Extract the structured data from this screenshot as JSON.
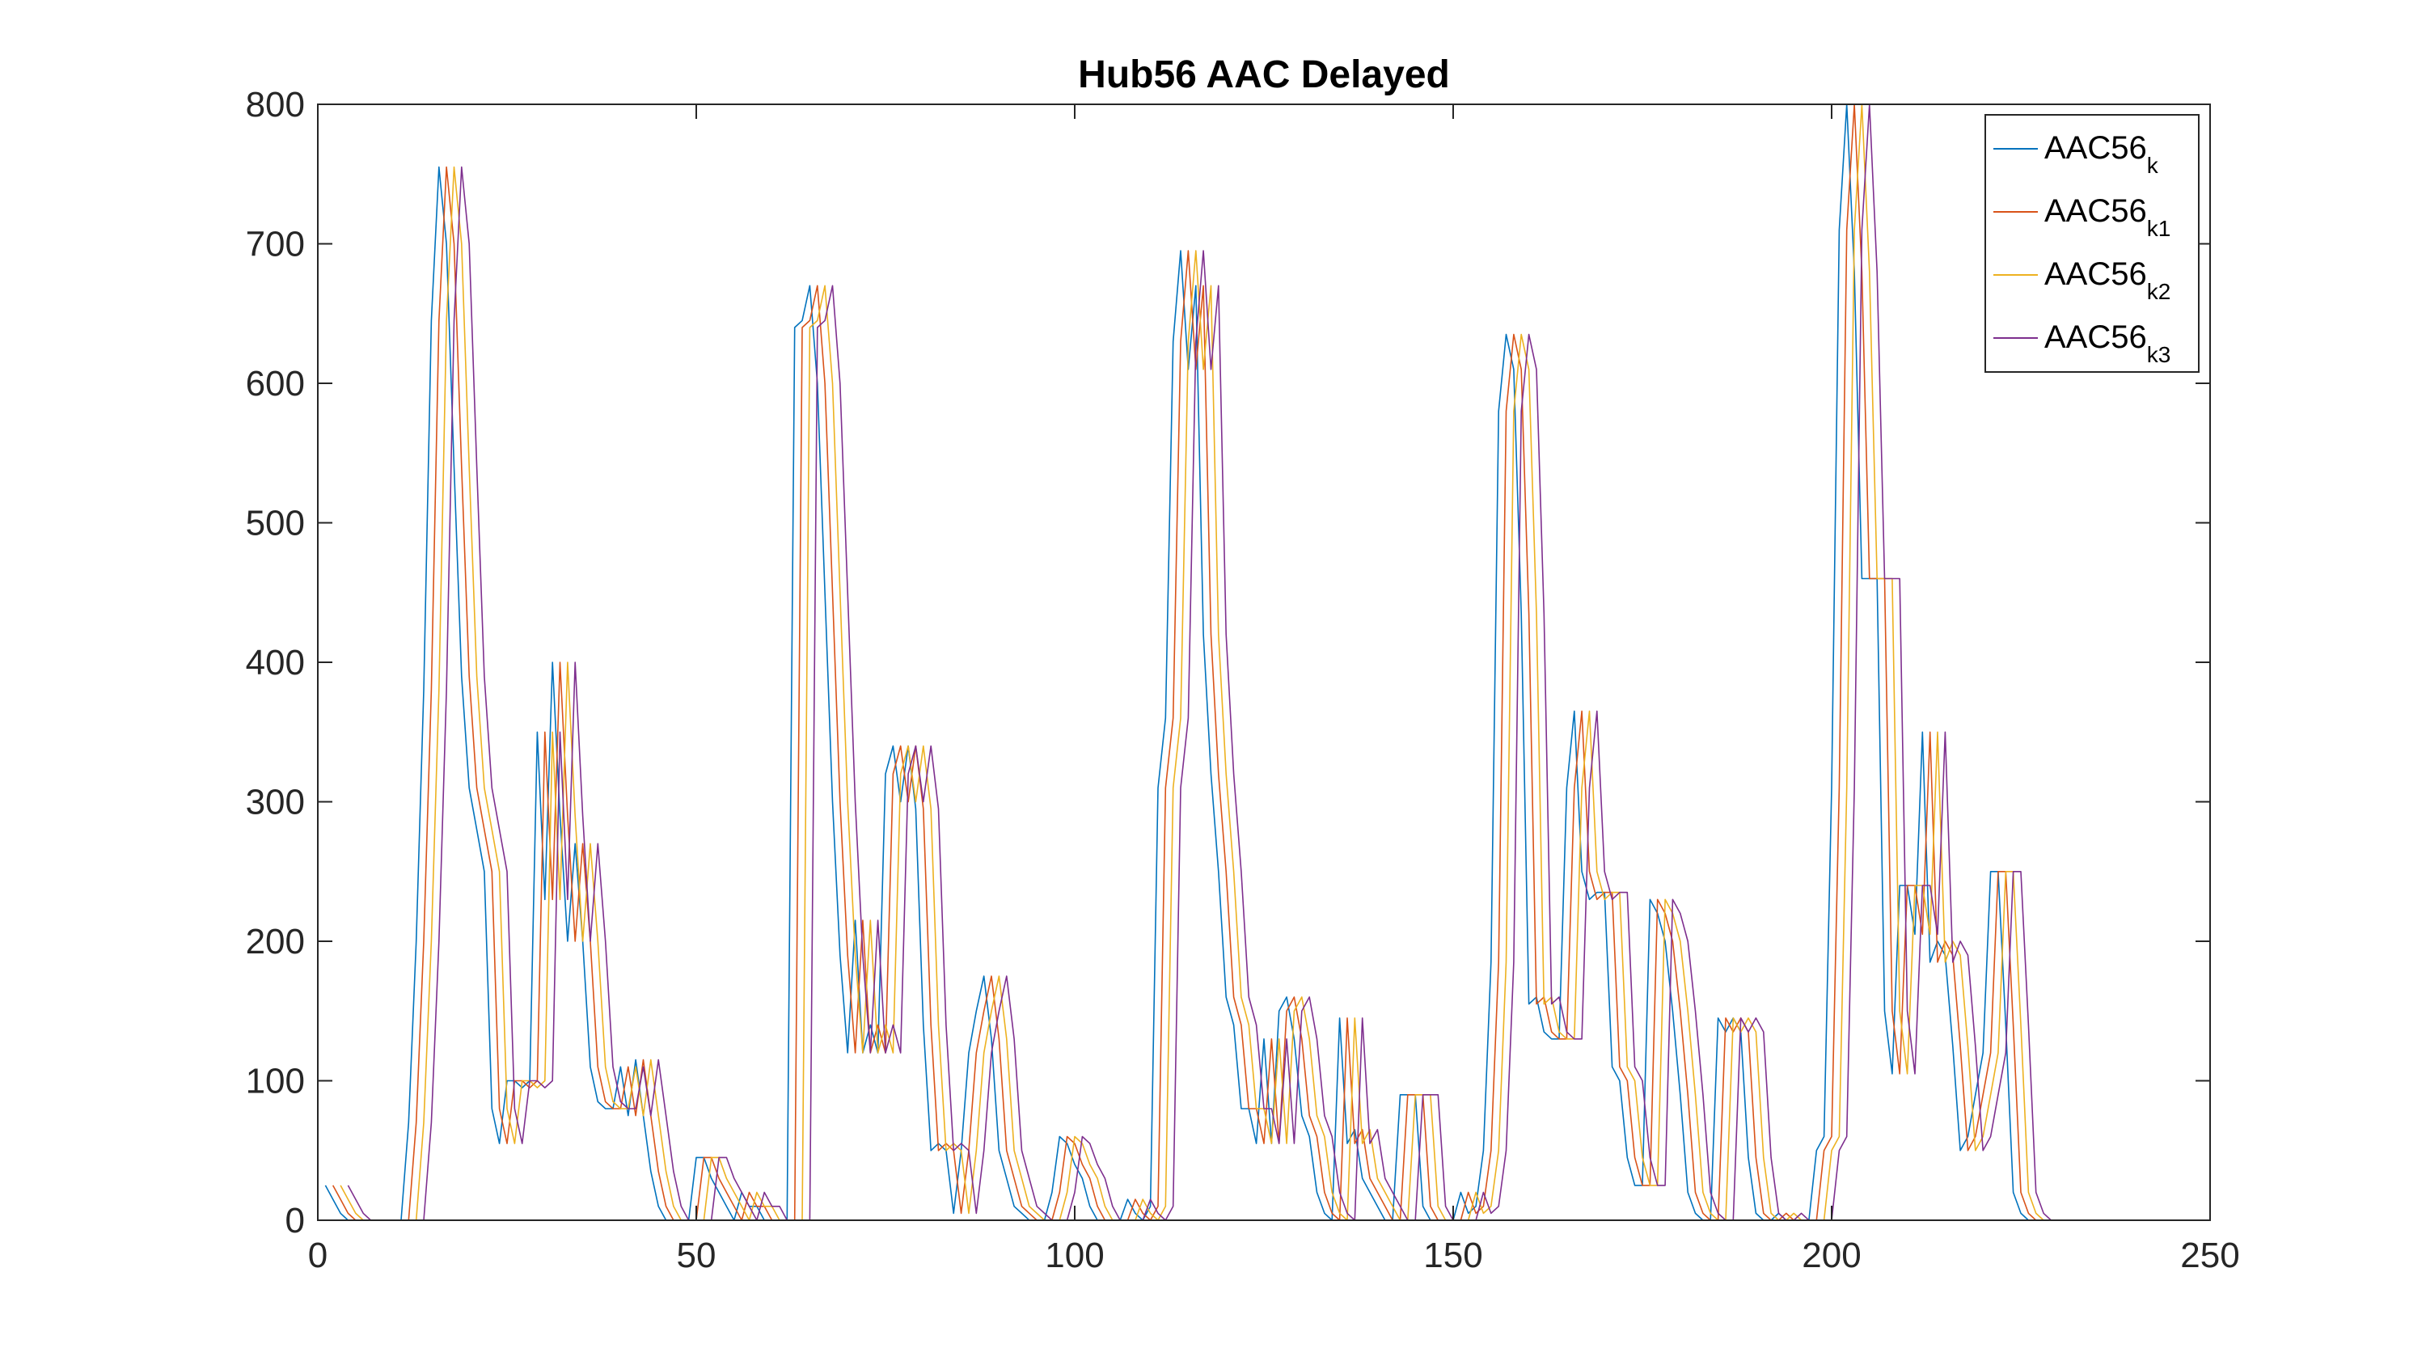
{
  "chart_data": {
    "type": "line",
    "title": "Hub56 AAC Delayed",
    "xlabel": "",
    "ylabel": "",
    "xlim": [
      0,
      250
    ],
    "ylim": [
      0,
      800
    ],
    "xticks": [
      0,
      50,
      100,
      150,
      200,
      250
    ],
    "yticks": [
      0,
      100,
      200,
      300,
      400,
      500,
      600,
      700,
      800
    ],
    "grid": false,
    "legend_position": "top-right",
    "series": [
      {
        "name": "AAC56",
        "subscript": "k",
        "color": "#0072BD",
        "delay": 0
      },
      {
        "name": "AAC56",
        "subscript": "k1",
        "color": "#D95319",
        "delay": 1
      },
      {
        "name": "AAC56",
        "subscript": "k2",
        "color": "#EDB120",
        "delay": 2
      },
      {
        "name": "AAC56",
        "subscript": "k3",
        "color": "#7E2F8E",
        "delay": 3
      }
    ],
    "base_x_start": 1,
    "base_values": [
      25,
      15,
      5,
      0,
      0,
      0,
      0,
      0,
      0,
      0,
      0,
      70,
      200,
      380,
      645,
      755,
      700,
      540,
      390,
      310,
      280,
      250,
      80,
      55,
      100,
      100,
      95,
      100,
      350,
      230,
      400,
      290,
      200,
      270,
      200,
      110,
      85,
      80,
      80,
      110,
      75,
      115,
      75,
      35,
      10,
      0,
      0,
      0,
      0,
      45,
      45,
      30,
      20,
      10,
      0,
      20,
      10,
      10,
      0,
      0,
      0,
      0,
      640,
      645,
      670,
      600,
      450,
      300,
      190,
      120,
      215,
      120,
      140,
      120,
      320,
      340,
      300,
      340,
      295,
      140,
      50,
      55,
      50,
      5,
      50,
      120,
      150,
      175,
      130,
      50,
      30,
      10,
      5,
      0,
      0,
      0,
      20,
      60,
      55,
      40,
      30,
      10,
      0,
      0,
      0,
      0,
      15,
      5,
      0,
      10,
      310,
      360,
      630,
      695,
      610,
      670,
      420,
      320,
      250,
      160,
      140,
      80,
      80,
      55,
      130,
      55,
      150,
      160,
      130,
      75,
      60,
      20,
      5,
      0,
      145,
      55,
      65,
      30,
      20,
      10,
      0,
      0,
      90,
      90,
      90,
      10,
      0,
      0,
      0,
      0,
      20,
      5,
      10,
      50,
      185,
      580,
      635,
      610,
      435,
      155,
      160,
      135,
      130,
      130,
      310,
      365,
      250,
      230,
      235,
      235,
      110,
      100,
      45,
      25,
      25,
      230,
      220,
      200,
      150,
      90,
      20,
      5,
      0,
      0,
      145,
      135,
      145,
      135,
      45,
      5,
      0,
      0,
      5,
      0,
      0,
      0,
      0,
      50,
      60,
      310,
      710,
      800,
      680,
      460,
      460,
      460,
      150,
      105,
      240,
      240,
      205,
      350,
      185,
      200,
      190,
      125,
      50,
      60,
      90,
      120,
      250,
      250,
      140,
      20,
      5,
      0
    ]
  }
}
